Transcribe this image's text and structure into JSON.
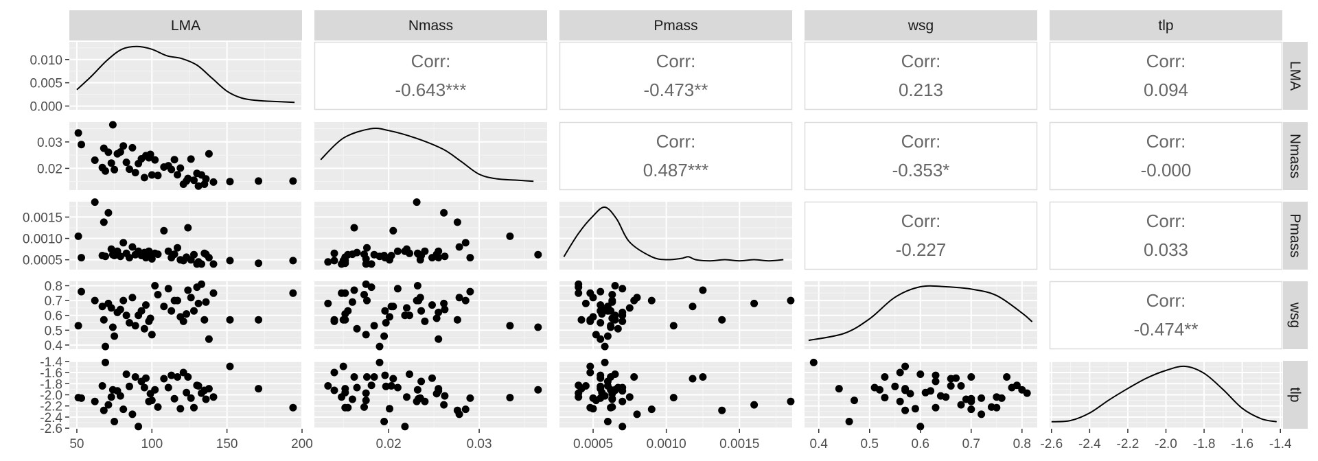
{
  "chart_data": {
    "type": "scatter",
    "variables": [
      "LMA",
      "Nmass",
      "Pmass",
      "wsg",
      "tlp"
    ],
    "corr_label": "Corr:",
    "correlations": [
      {
        "row": 0,
        "col": 1,
        "value": "-0.643***"
      },
      {
        "row": 0,
        "col": 2,
        "value": "-0.473**"
      },
      {
        "row": 0,
        "col": 3,
        "value": "0.213"
      },
      {
        "row": 0,
        "col": 4,
        "value": "0.094"
      },
      {
        "row": 1,
        "col": 2,
        "value": "0.487***"
      },
      {
        "row": 1,
        "col": 3,
        "value": "-0.353*"
      },
      {
        "row": 1,
        "col": 4,
        "value": "-0.000"
      },
      {
        "row": 2,
        "col": 3,
        "value": "-0.227"
      },
      {
        "row": 2,
        "col": 4,
        "value": "0.033"
      },
      {
        "row": 3,
        "col": 4,
        "value": "-0.474**"
      }
    ],
    "x_axes": [
      {
        "range": [
          45,
          200
        ],
        "ticks": [
          50,
          100,
          150,
          200
        ],
        "labels": [
          "50",
          "100",
          "150",
          "200"
        ]
      },
      {
        "range": [
          0.0118,
          0.0375
        ],
        "ticks": [
          0.02,
          0.03
        ],
        "labels": [
          "0.02",
          "0.03"
        ]
      },
      {
        "range": [
          0.00027,
          0.00186
        ],
        "ticks": [
          0.0005,
          0.001,
          0.0015
        ],
        "labels": [
          "0.0005",
          "0.0010",
          "0.0015"
        ]
      },
      {
        "range": [
          0.372,
          0.83
        ],
        "ticks": [
          0.4,
          0.5,
          0.6,
          0.7,
          0.8
        ],
        "labels": [
          "0.4",
          "0.5",
          "0.6",
          "0.7",
          "0.8"
        ]
      },
      {
        "range": [
          -2.61,
          -1.39
        ],
        "ticks": [
          -2.6,
          -2.4,
          -2.2,
          -2.0,
          -1.8,
          -1.6,
          -1.4
        ],
        "labels": [
          "-2.6",
          "-2.4",
          "-2.2",
          "-2.0",
          "-1.8",
          "-1.6",
          "-1.4"
        ]
      }
    ],
    "y_axes": [
      {
        "range": [
          -0.0008,
          0.0138
        ],
        "ticks": [
          0.0,
          0.005,
          0.01
        ],
        "labels": [
          "0.000",
          "0.005",
          "0.010"
        ]
      },
      {
        "range": [
          0.0118,
          0.0375
        ],
        "ticks": [
          0.02,
          0.03
        ],
        "labels": [
          "0.02",
          "0.03"
        ]
      },
      {
        "range": [
          0.00027,
          0.00186
        ],
        "ticks": [
          0.0005,
          0.001,
          0.0015
        ],
        "labels": [
          "0.0005",
          "0.0010",
          "0.0015"
        ]
      },
      {
        "range": [
          0.372,
          0.83
        ],
        "ticks": [
          0.4,
          0.5,
          0.6,
          0.7,
          0.8
        ],
        "labels": [
          "0.4",
          "0.5",
          "0.6",
          "0.7",
          "0.8"
        ]
      },
      {
        "range": [
          -2.61,
          -1.39
        ],
        "ticks": [
          -2.6,
          -2.4,
          -2.2,
          -2.0,
          -1.8,
          -1.6,
          -1.4
        ],
        "labels": [
          "-2.6",
          "-2.4",
          "-2.2",
          "-2.0",
          "-1.8",
          "-1.6",
          "-1.4"
        ]
      }
    ],
    "densities": [
      {
        "var": "LMA",
        "scale": "data",
        "points": [
          [
            50,
            0.0035
          ],
          [
            60,
            0.0065
          ],
          [
            70,
            0.0098
          ],
          [
            80,
            0.0122
          ],
          [
            90,
            0.0128
          ],
          [
            100,
            0.0122
          ],
          [
            110,
            0.0108
          ],
          [
            120,
            0.0102
          ],
          [
            130,
            0.0088
          ],
          [
            140,
            0.006
          ],
          [
            150,
            0.0032
          ],
          [
            160,
            0.0017
          ],
          [
            170,
            0.0012
          ],
          [
            180,
            0.001
          ],
          [
            195,
            0.0008
          ]
        ]
      },
      {
        "var": "Nmass",
        "scale": "relative",
        "points": [
          [
            0.0125,
            0.45
          ],
          [
            0.015,
            0.82
          ],
          [
            0.018,
            0.98
          ],
          [
            0.02,
            0.95
          ],
          [
            0.023,
            0.82
          ],
          [
            0.026,
            0.63
          ],
          [
            0.028,
            0.42
          ],
          [
            0.03,
            0.2
          ],
          [
            0.032,
            0.12
          ],
          [
            0.034,
            0.1
          ],
          [
            0.036,
            0.08
          ]
        ]
      },
      {
        "var": "Pmass",
        "scale": "relative",
        "points": [
          [
            0.0003,
            0.15
          ],
          [
            0.0004,
            0.55
          ],
          [
            0.0005,
            0.85
          ],
          [
            0.00058,
            1.0
          ],
          [
            0.00066,
            0.8
          ],
          [
            0.00075,
            0.4
          ],
          [
            0.0009,
            0.15
          ],
          [
            0.001,
            0.1
          ],
          [
            0.0011,
            0.12
          ],
          [
            0.00115,
            0.15
          ],
          [
            0.0012,
            0.1
          ],
          [
            0.0013,
            0.08
          ],
          [
            0.0014,
            0.1
          ],
          [
            0.0015,
            0.08
          ],
          [
            0.0016,
            0.1
          ],
          [
            0.0017,
            0.08
          ],
          [
            0.0018,
            0.1
          ]
        ]
      },
      {
        "var": "wsg",
        "scale": "relative",
        "points": [
          [
            0.38,
            0.08
          ],
          [
            0.45,
            0.2
          ],
          [
            0.5,
            0.45
          ],
          [
            0.55,
            0.82
          ],
          [
            0.6,
            1.0
          ],
          [
            0.65,
            1.0
          ],
          [
            0.7,
            0.96
          ],
          [
            0.75,
            0.85
          ],
          [
            0.8,
            0.55
          ],
          [
            0.82,
            0.4
          ]
        ]
      },
      {
        "var": "tlp",
        "scale": "relative",
        "points": [
          [
            -2.6,
            0.05
          ],
          [
            -2.5,
            0.07
          ],
          [
            -2.4,
            0.2
          ],
          [
            -2.3,
            0.42
          ],
          [
            -2.2,
            0.62
          ],
          [
            -2.1,
            0.8
          ],
          [
            -2.0,
            0.93
          ],
          [
            -1.9,
            1.0
          ],
          [
            -1.8,
            0.88
          ],
          [
            -1.7,
            0.6
          ],
          [
            -1.6,
            0.28
          ],
          [
            -1.5,
            0.1
          ],
          [
            -1.42,
            0.05
          ]
        ]
      }
    ],
    "observations": [
      {
        "LMA": 51,
        "Nmass": 0.0334,
        "Pmass": 0.00105,
        "wsg": 0.53,
        "tlp": -2.05
      },
      {
        "LMA": 53,
        "Nmass": 0.029,
        "Pmass": 0.00055,
        "wsg": 0.76,
        "tlp": -2.06
      },
      {
        "LMA": 62,
        "Nmass": 0.0231,
        "Pmass": 0.00185,
        "wsg": 0.7,
        "tlp": -2.12
      },
      {
        "LMA": 67,
        "Nmass": 0.0203,
        "Pmass": 0.0006,
        "wsg": 0.66,
        "tlp": -1.84
      },
      {
        "LMA": 68,
        "Nmass": 0.0276,
        "Pmass": 0.00138,
        "wsg": 0.57,
        "tlp": -2.28
      },
      {
        "LMA": 69,
        "Nmass": 0.019,
        "Pmass": 0.00058,
        "wsg": 0.39,
        "tlp": -1.42
      },
      {
        "LMA": 71,
        "Nmass": 0.0261,
        "Pmass": 0.0016,
        "wsg": 0.68,
        "tlp": -2.18
      },
      {
        "LMA": 73,
        "Nmass": 0.022,
        "Pmass": 0.00075,
        "wsg": 0.65,
        "tlp": -2.04
      },
      {
        "LMA": 74,
        "Nmass": 0.0365,
        "Pmass": 0.00062,
        "wsg": 0.52,
        "tlp": -1.91
      },
      {
        "LMA": 75,
        "Nmass": 0.0195,
        "Pmass": 0.0006,
        "wsg": 0.46,
        "tlp": -2.48
      },
      {
        "LMA": 77,
        "Nmass": 0.0255,
        "Pmass": 0.0007,
        "wsg": 0.62,
        "tlp": -1.93
      },
      {
        "LMA": 79,
        "Nmass": 0.0262,
        "Pmass": 0.00058,
        "wsg": 0.64,
        "tlp": -2.02
      },
      {
        "LMA": 81,
        "Nmass": 0.0285,
        "Pmass": 0.0009,
        "wsg": 0.7,
        "tlp": -2.26
      },
      {
        "LMA": 83,
        "Nmass": 0.0223,
        "Pmass": 0.00065,
        "wsg": 0.6,
        "tlp": -1.63
      },
      {
        "LMA": 85,
        "Nmass": 0.0197,
        "Pmass": 0.00055,
        "wsg": 0.55,
        "tlp": -1.85
      },
      {
        "LMA": 87,
        "Nmass": 0.0278,
        "Pmass": 0.0008,
        "wsg": 0.72,
        "tlp": -2.35
      },
      {
        "LMA": 89,
        "Nmass": 0.0184,
        "Pmass": 0.00062,
        "wsg": 0.53,
        "tlp": -1.68
      },
      {
        "LMA": 91,
        "Nmass": 0.0218,
        "Pmass": 0.0007,
        "wsg": 0.6,
        "tlp": -2.57
      },
      {
        "LMA": 93,
        "Nmass": 0.0236,
        "Pmass": 0.0006,
        "wsg": 0.63,
        "tlp": -1.76
      },
      {
        "LMA": 95,
        "Nmass": 0.0165,
        "Pmass": 0.00067,
        "wsg": 0.51,
        "tlp": -1.87
      },
      {
        "LMA": 96,
        "Nmass": 0.0248,
        "Pmass": 0.00055,
        "wsg": 0.67,
        "tlp": -1.7
      },
      {
        "LMA": 98,
        "Nmass": 0.024,
        "Pmass": 0.0007,
        "wsg": 0.56,
        "tlp": -2.12
      },
      {
        "LMA": 99,
        "Nmass": 0.0253,
        "Pmass": 0.00063,
        "wsg": 0.58,
        "tlp": -1.98
      },
      {
        "LMA": 100,
        "Nmass": 0.0175,
        "Pmass": 0.00052,
        "wsg": 0.47,
        "tlp": -2.1
      },
      {
        "LMA": 102,
        "Nmass": 0.0232,
        "Pmass": 0.00065,
        "wsg": 0.8,
        "tlp": -1.91
      },
      {
        "LMA": 104,
        "Nmass": 0.0173,
        "Pmass": 0.00063,
        "wsg": 0.74,
        "tlp": -2.22
      },
      {
        "LMA": 108,
        "Nmass": 0.0205,
        "Pmass": 0.00118,
        "wsg": 0.66,
        "tlp": -1.71
      },
      {
        "LMA": 111,
        "Nmass": 0.021,
        "Pmass": 0.0007,
        "wsg": 0.78,
        "tlp": -1.87
      },
      {
        "LMA": 113,
        "Nmass": 0.0196,
        "Pmass": 0.00055,
        "wsg": 0.63,
        "tlp": -1.65
      },
      {
        "LMA": 115,
        "Nmass": 0.0233,
        "Pmass": 0.00063,
        "wsg": 0.7,
        "tlp": -2.07
      },
      {
        "LMA": 117,
        "Nmass": 0.0176,
        "Pmass": 0.00078,
        "wsg": 0.7,
        "tlp": -1.68
      },
      {
        "LMA": 119,
        "Nmass": 0.0201,
        "Pmass": 0.0005,
        "wsg": 0.59,
        "tlp": -2.25
      },
      {
        "LMA": 121,
        "Nmass": 0.014,
        "Pmass": 0.00048,
        "wsg": 0.56,
        "tlp": -1.6
      },
      {
        "LMA": 123,
        "Nmass": 0.0152,
        "Pmass": 0.00056,
        "wsg": 0.61,
        "tlp": -1.96
      },
      {
        "LMA": 124,
        "Nmass": 0.0162,
        "Pmass": 0.00125,
        "wsg": 0.77,
        "tlp": -1.68
      },
      {
        "LMA": 126,
        "Nmass": 0.0235,
        "Pmass": 0.0005,
        "wsg": 0.72,
        "tlp": -2.06
      },
      {
        "LMA": 128,
        "Nmass": 0.0155,
        "Pmass": 0.00062,
        "wsg": 0.63,
        "tlp": -2.23
      },
      {
        "LMA": 130,
        "Nmass": 0.0181,
        "Pmass": 0.0004,
        "wsg": 0.79,
        "tlp": -1.83
      },
      {
        "LMA": 131,
        "Nmass": 0.0133,
        "Pmass": 0.00045,
        "wsg": 0.68,
        "tlp": -1.84
      },
      {
        "LMA": 133,
        "Nmass": 0.0175,
        "Pmass": 0.0004,
        "wsg": 0.81,
        "tlp": -1.97
      },
      {
        "LMA": 135,
        "Nmass": 0.014,
        "Pmass": 0.00065,
        "wsg": 0.57,
        "tlp": -1.92
      },
      {
        "LMA": 136,
        "Nmass": 0.016,
        "Pmass": 0.00063,
        "wsg": 0.69,
        "tlp": -2.08
      },
      {
        "LMA": 138,
        "Nmass": 0.0255,
        "Pmass": 0.00055,
        "wsg": 0.44,
        "tlp": -1.89
      },
      {
        "LMA": 141,
        "Nmass": 0.0148,
        "Pmass": 0.0004,
        "wsg": 0.75,
        "tlp": -2.04
      },
      {
        "LMA": 152,
        "Nmass": 0.015,
        "Pmass": 0.00048,
        "wsg": 0.57,
        "tlp": -1.49
      },
      {
        "LMA": 171,
        "Nmass": 0.0152,
        "Pmass": 0.00042,
        "wsg": 0.57,
        "tlp": -1.89
      },
      {
        "LMA": 194,
        "Nmass": 0.0152,
        "Pmass": 0.00048,
        "wsg": 0.75,
        "tlp": -2.23
      }
    ]
  }
}
